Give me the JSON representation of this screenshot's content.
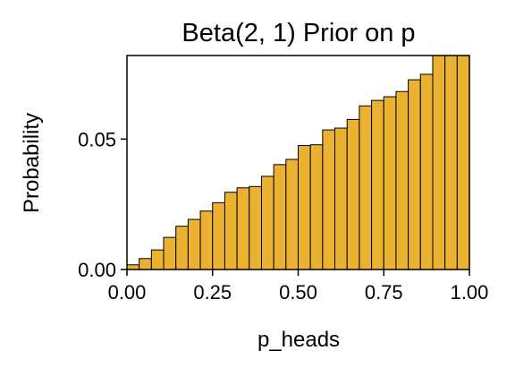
{
  "chart_data": {
    "type": "bar",
    "title": "Beta(2, 1) Prior on p",
    "xlabel": "p_heads",
    "ylabel": "Probability",
    "xlim": [
      0,
      1
    ],
    "ylim": [
      0,
      0.082
    ],
    "grid": false,
    "bar_color": "#EBB130",
    "edge_color": "#000000",
    "bin_edges": [
      0.0,
      0.0357,
      0.0714,
      0.1071,
      0.1429,
      0.1786,
      0.2143,
      0.25,
      0.2857,
      0.3214,
      0.3571,
      0.3929,
      0.4286,
      0.4643,
      0.5,
      0.5357,
      0.5714,
      0.6071,
      0.6429,
      0.6786,
      0.7143,
      0.75,
      0.7857,
      0.8214,
      0.8571,
      0.8929,
      0.9286,
      0.9643,
      1.0
    ],
    "values": [
      0.0018,
      0.0042,
      0.0075,
      0.0123,
      0.0166,
      0.0192,
      0.0224,
      0.0256,
      0.0296,
      0.0313,
      0.0318,
      0.0357,
      0.0402,
      0.0422,
      0.0475,
      0.0478,
      0.0535,
      0.0542,
      0.0575,
      0.0627,
      0.0648,
      0.0662,
      0.0682,
      0.0727,
      0.0748,
      0.0845,
      0.0889,
      0.0954
    ],
    "xticks": [
      {
        "value": 0.0,
        "label": "0.00"
      },
      {
        "value": 0.25,
        "label": "0.25"
      },
      {
        "value": 0.5,
        "label": "0.50"
      },
      {
        "value": 0.75,
        "label": "0.75"
      },
      {
        "value": 1.0,
        "label": "1.00"
      }
    ],
    "yticks": [
      {
        "value": 0.0,
        "label": "0.00"
      },
      {
        "value": 0.05,
        "label": "0.05"
      }
    ]
  }
}
